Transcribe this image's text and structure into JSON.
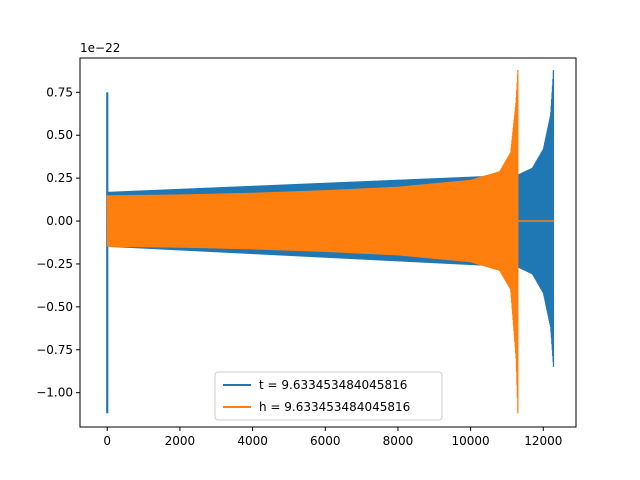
{
  "chart_data": {
    "type": "line",
    "title": "",
    "xlabel": "",
    "ylabel": "",
    "offset_text": "1e−22",
    "xlim": [
      -750,
      12900
    ],
    "ylim": [
      -1.2,
      0.95
    ],
    "x_ticks": [
      0,
      2000,
      4000,
      6000,
      8000,
      10000,
      12000
    ],
    "x_tick_labels": [
      "0",
      "2000",
      "4000",
      "6000",
      "8000",
      "10000",
      "12000"
    ],
    "y_ticks": [
      -1.0,
      -0.75,
      -0.5,
      -0.25,
      0.0,
      0.25,
      0.5,
      0.75
    ],
    "y_tick_labels": [
      "−1.00",
      "−0.75",
      "−0.50",
      "−0.25",
      "0.00",
      "0.25",
      "0.50",
      "0.75"
    ],
    "grid": false,
    "legend_position": "lower-center",
    "series": [
      {
        "name": "t = 9.633453484045816",
        "color": "#1f77b4",
        "spike": {
          "x": 0,
          "y_max": 0.75,
          "y_min": -1.12
        },
        "envelope": [
          {
            "x": 0,
            "upper": 0.17,
            "lower": -0.15
          },
          {
            "x": 11300,
            "upper": 0.27,
            "lower": -0.27
          },
          {
            "x": 11700,
            "upper": 0.31,
            "lower": -0.31
          },
          {
            "x": 12000,
            "upper": 0.42,
            "lower": -0.42
          },
          {
            "x": 12200,
            "upper": 0.62,
            "lower": -0.62
          },
          {
            "x": 12280,
            "upper": 0.88,
            "lower": -0.85
          }
        ]
      },
      {
        "name": "h = 9.633453484045816",
        "color": "#ff7f0e",
        "envelope": [
          {
            "x": 0,
            "upper": 0.15,
            "lower": -0.15
          },
          {
            "x": 2000,
            "upper": 0.155,
            "lower": -0.155
          },
          {
            "x": 4000,
            "upper": 0.165,
            "lower": -0.165
          },
          {
            "x": 6000,
            "upper": 0.18,
            "lower": -0.18
          },
          {
            "x": 8000,
            "upper": 0.2,
            "lower": -0.2
          },
          {
            "x": 10000,
            "upper": 0.24,
            "lower": -0.24
          },
          {
            "x": 10800,
            "upper": 0.29,
            "lower": -0.29
          },
          {
            "x": 11100,
            "upper": 0.4,
            "lower": -0.4
          },
          {
            "x": 11250,
            "upper": 0.7,
            "lower": -0.8
          },
          {
            "x": 11300,
            "upper": 0.88,
            "lower": -1.12
          }
        ],
        "tail": {
          "x_start": 11300,
          "x_end": 12300,
          "y": 0.0
        }
      }
    ]
  }
}
